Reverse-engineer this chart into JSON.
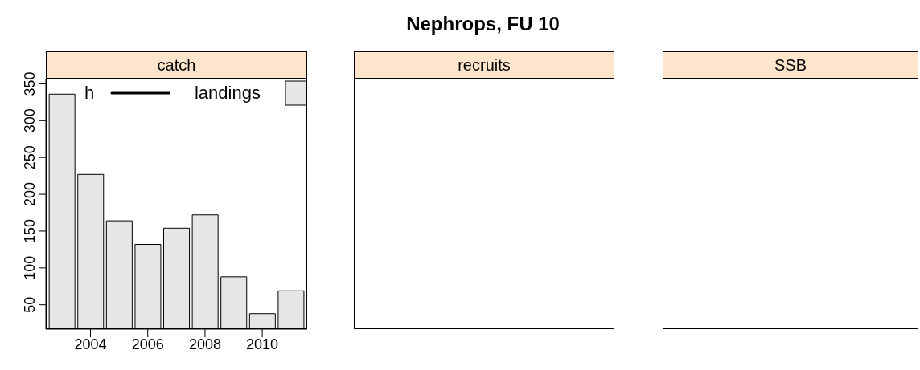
{
  "chart_data": [
    {
      "type": "bar",
      "subtitle": "catch",
      "x": [
        2003,
        2004,
        2005,
        2006,
        2007,
        2008,
        2009,
        2010,
        2011
      ],
      "series": [
        {
          "name": "h",
          "type": "line",
          "color": "#000000",
          "values": [
            null,
            null,
            null,
            null,
            null,
            null,
            null,
            null,
            null
          ]
        },
        {
          "name": "landings",
          "type": "bar",
          "color": "#e6e6e6",
          "values": [
            336,
            227,
            164,
            132,
            154,
            172,
            88,
            38,
            69
          ]
        }
      ],
      "xlim": [
        2002.44,
        2011.57
      ],
      "xticks": [
        2004,
        2006,
        2008,
        2010
      ],
      "ylim": [
        17,
        357
      ],
      "yticks": [
        50,
        100,
        150,
        200,
        250,
        300,
        350
      ],
      "grid": false,
      "legend": "top"
    },
    {
      "type": "other",
      "title": "Nephrops, FU 10",
      "subtitle": "recruits"
    },
    {
      "type": "other",
      "subtitle": "SSB"
    }
  ]
}
